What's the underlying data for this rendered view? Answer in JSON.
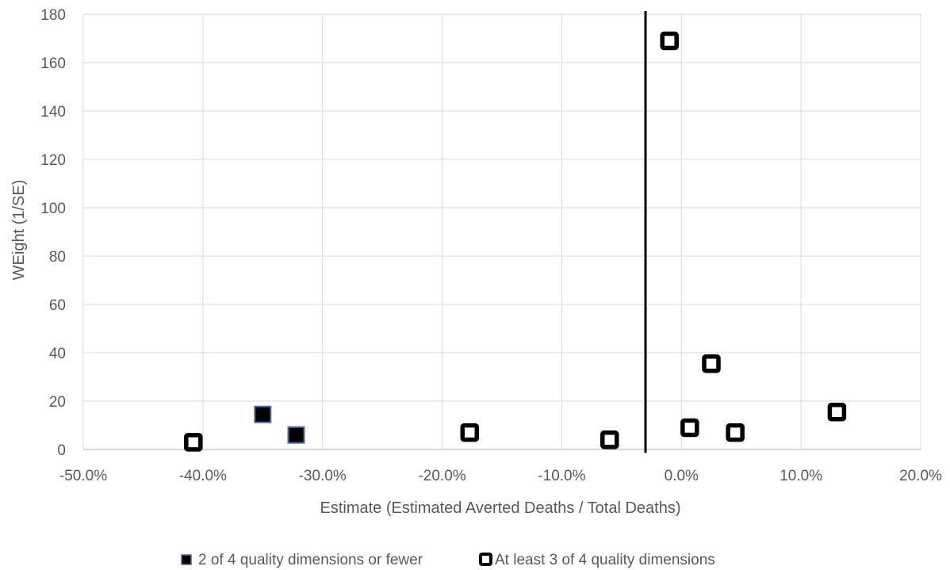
{
  "chart_data": {
    "type": "scatter",
    "title": "",
    "xlabel": "Estimate (Estimated Averted Deaths / Total Deaths)",
    "ylabel": "WEight (1/SE)",
    "xlim": [
      -0.5,
      0.2
    ],
    "ylim": [
      0,
      180
    ],
    "x_ticks": [
      -0.5,
      -0.4,
      -0.3,
      -0.2,
      -0.1,
      0.0,
      0.1,
      0.2
    ],
    "x_tick_labels": [
      "-50.0%",
      "-40.0%",
      "-30.0%",
      "-20.0%",
      "-10.0%",
      "0.0%",
      "10.0%",
      "20.0%"
    ],
    "y_ticks": [
      0,
      20,
      40,
      60,
      80,
      100,
      120,
      140,
      160,
      180
    ],
    "y_tick_labels": [
      "0",
      "20",
      "40",
      "60",
      "80",
      "100",
      "120",
      "140",
      "160",
      "180"
    ],
    "grid": true,
    "legend_position": "bottom",
    "reference_line": {
      "x": -0.03,
      "color": "#000000"
    },
    "series": [
      {
        "name": "2 of 4 quality dimensions or fewer",
        "marker": "filled-square",
        "fill": "#000000",
        "stroke": "#4a6fa5",
        "points": [
          {
            "x": -0.35,
            "y": 14.5
          },
          {
            "x": -0.322,
            "y": 6
          }
        ]
      },
      {
        "name": "At least 3 of 4 quality dimensions",
        "marker": "hollow-square",
        "fill": "#ffffff",
        "stroke": "#000000",
        "points": [
          {
            "x": -0.408,
            "y": 3
          },
          {
            "x": -0.177,
            "y": 7
          },
          {
            "x": -0.06,
            "y": 4
          },
          {
            "x": -0.01,
            "y": 169
          },
          {
            "x": 0.007,
            "y": 9
          },
          {
            "x": 0.025,
            "y": 35.5
          },
          {
            "x": 0.045,
            "y": 7
          },
          {
            "x": 0.13,
            "y": 15.5
          }
        ]
      }
    ]
  }
}
